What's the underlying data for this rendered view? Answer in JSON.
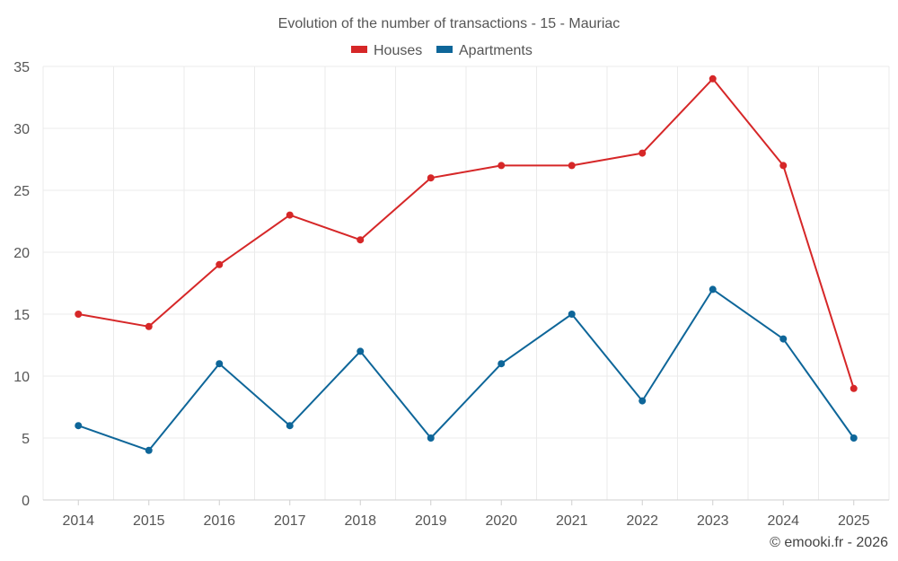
{
  "chart_data": {
    "type": "line",
    "title": "Evolution of the number of transactions - 15 - Mauriac",
    "categories": [
      "2014",
      "2015",
      "2016",
      "2017",
      "2018",
      "2019",
      "2020",
      "2021",
      "2022",
      "2023",
      "2024",
      "2025"
    ],
    "series": [
      {
        "name": "Houses",
        "color": "#d62728",
        "values": [
          15,
          14,
          19,
          23,
          21,
          26,
          27,
          27,
          28,
          34,
          27,
          9
        ]
      },
      {
        "name": "Apartments",
        "color": "#0e6699",
        "values": [
          6,
          4,
          11,
          6,
          12,
          5,
          11,
          15,
          8,
          17,
          13,
          5
        ]
      }
    ],
    "ylim": [
      0,
      35
    ],
    "yticks": [
      0,
      5,
      10,
      15,
      20,
      25,
      30,
      35
    ],
    "xlabel": "",
    "ylabel": "",
    "grid": true,
    "legend": "top-center"
  },
  "credit": "© emooki.fr - 2026"
}
